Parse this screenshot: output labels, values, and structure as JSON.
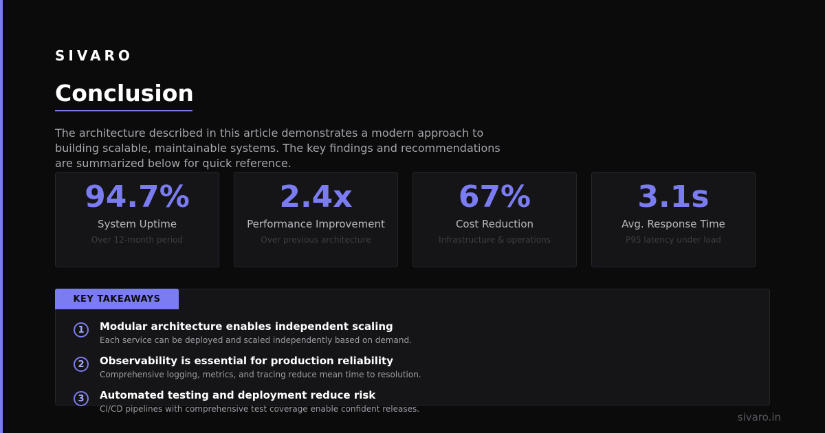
{
  "brand": "SIVARO",
  "title": "Conclusion",
  "intro": "The architecture described in this article demonstrates a modern approach to building scalable, maintainable systems. The key findings and recommendations are summarized below for quick reference.",
  "stats": [
    {
      "value": "94.7%",
      "label": "System Uptime",
      "sub": "Over 12-month period"
    },
    {
      "value": "2.4x",
      "label": "Performance Improvement",
      "sub": "Over previous architecture"
    },
    {
      "value": "67%",
      "label": "Cost Reduction",
      "sub": "Infrastructure & operations"
    },
    {
      "value": "3.1s",
      "label": "Avg. Response Time",
      "sub": "P95 latency under load"
    }
  ],
  "takeaways": {
    "heading": "KEY TAKEAWAYS",
    "items": [
      {
        "number": "1",
        "title": "Modular architecture enables independent scaling",
        "desc": "Each service can be deployed and scaled independently based on demand."
      },
      {
        "number": "2",
        "title": "Observability is essential for production reliability",
        "desc": "Comprehensive logging, metrics, and tracing reduce mean time to resolution."
      },
      {
        "number": "3",
        "title": "Automated testing and deployment reduce risk",
        "desc": "CI/CD pipelines with comprehensive test coverage enable confident releases."
      }
    ]
  },
  "footer": "sivaro.in",
  "colors": {
    "accent": "#7b7cf2",
    "background": "#0b0b0c",
    "card": "#151518"
  }
}
